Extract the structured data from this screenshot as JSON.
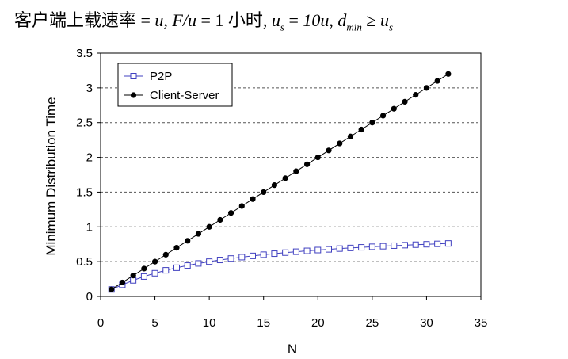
{
  "heading": {
    "prefix": "客户端上载速率 = ",
    "u1": "u",
    "sep1": ",  ",
    "fu": "F/u",
    "eq1": " = 1 小时,  ",
    "us_u": "u",
    "us_sub": "s",
    "us_eq": " = ",
    "us_val": "10u",
    "sep2": ",  ",
    "d": "d",
    "d_sub": "min",
    "geq": " ≥ ",
    "u3": "u",
    "u3_sub": "s"
  },
  "chart_data": {
    "type": "line",
    "title": "",
    "xlabel": "N",
    "ylabel": "Minimum Distribution Time",
    "xlim": [
      0,
      35
    ],
    "ylim": [
      0,
      3.5
    ],
    "x_ticks": [
      "0",
      "5",
      "10",
      "15",
      "20",
      "25",
      "30",
      "35"
    ],
    "y_ticks": [
      "0",
      "0.5",
      "1",
      "1.5",
      "2",
      "2.5",
      "3",
      "3.5"
    ],
    "grid": "horizontal dashed",
    "legend_position": "top-left",
    "x": [
      1,
      2,
      3,
      4,
      5,
      6,
      7,
      8,
      9,
      10,
      11,
      12,
      13,
      14,
      15,
      16,
      17,
      18,
      19,
      20,
      21,
      22,
      23,
      24,
      25,
      26,
      27,
      28,
      29,
      30,
      31,
      32
    ],
    "series": [
      {
        "name": "P2P",
        "color": "#4040c0",
        "marker": "open-square",
        "values": [
          0.1,
          0.167,
          0.231,
          0.286,
          0.333,
          0.375,
          0.412,
          0.444,
          0.474,
          0.5,
          0.524,
          0.545,
          0.565,
          0.583,
          0.6,
          0.615,
          0.63,
          0.643,
          0.655,
          0.667,
          0.677,
          0.688,
          0.697,
          0.706,
          0.714,
          0.722,
          0.73,
          0.737,
          0.744,
          0.75,
          0.756,
          0.762
        ]
      },
      {
        "name": "Client-Server",
        "color": "#000000",
        "marker": "filled-circle",
        "values": [
          0.1,
          0.2,
          0.3,
          0.4,
          0.5,
          0.6,
          0.7,
          0.8,
          0.9,
          1.0,
          1.1,
          1.2,
          1.3,
          1.4,
          1.5,
          1.6,
          1.7,
          1.8,
          1.9,
          2.0,
          2.1,
          2.2,
          2.3,
          2.4,
          2.5,
          2.6,
          2.7,
          2.8,
          2.9,
          3.0,
          3.1,
          3.2
        ]
      }
    ]
  }
}
